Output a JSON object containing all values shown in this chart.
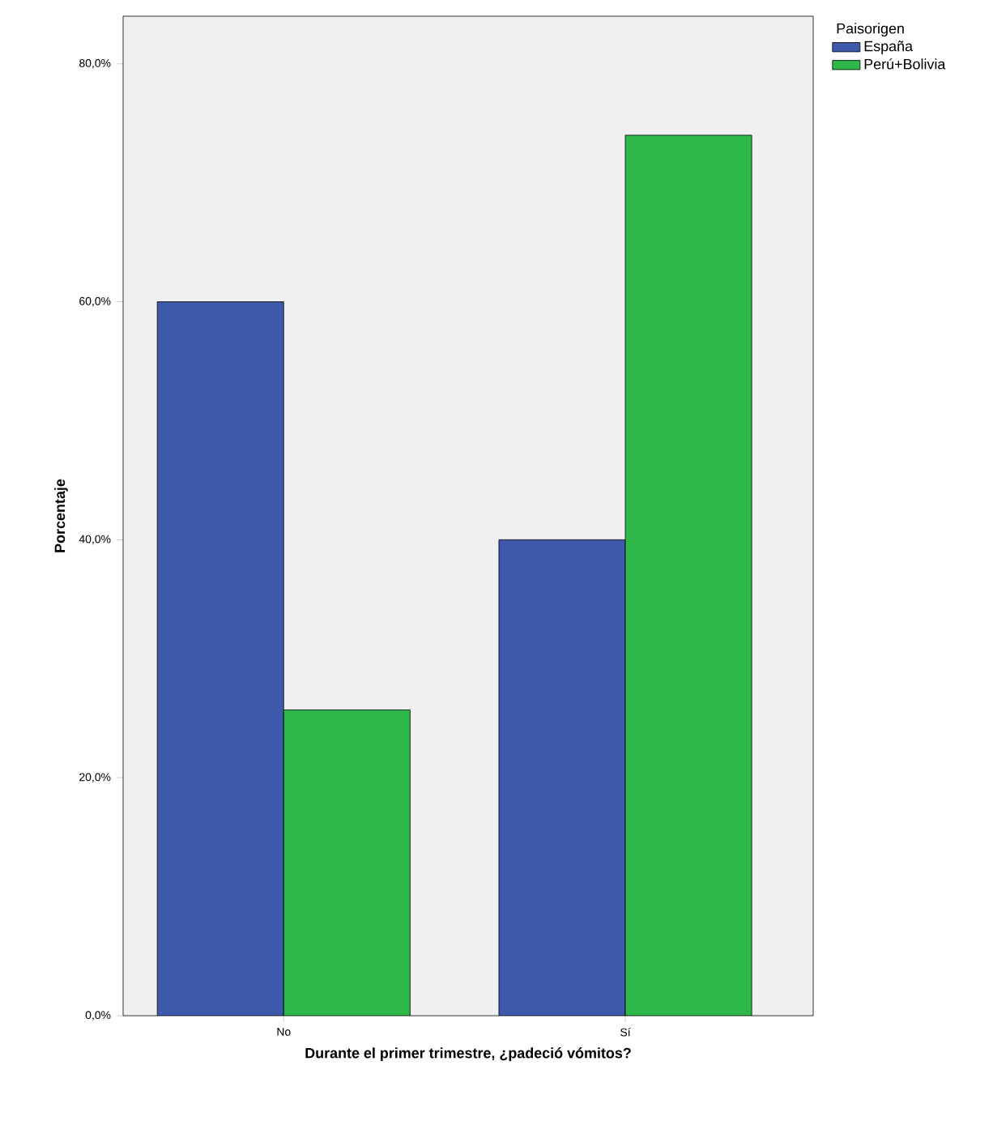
{
  "chart_data": {
    "type": "bar",
    "xlabel": "Durante el primer trimestre, ¿padeció vómitos?",
    "ylabel": "Porcentaje",
    "legend_title": "Paisorigen",
    "legend": "top right",
    "categories": [
      "No",
      "Sí"
    ],
    "series": [
      {
        "name": "España",
        "color": "#3e58ac",
        "values": [
          60.0,
          40.0
        ]
      },
      {
        "name": "Perú+Bolivia",
        "color": "#2fb84a",
        "values": [
          25.7,
          74.0
        ]
      }
    ],
    "ylim": [
      0,
      84
    ],
    "yticks": [
      {
        "value": 0,
        "label": "0,0%"
      },
      {
        "value": 20,
        "label": "20,0%"
      },
      {
        "value": 40,
        "label": "40,0%"
      },
      {
        "value": 60,
        "label": "60,0%"
      },
      {
        "value": 80,
        "label": "80,0%"
      }
    ],
    "grid": false
  }
}
